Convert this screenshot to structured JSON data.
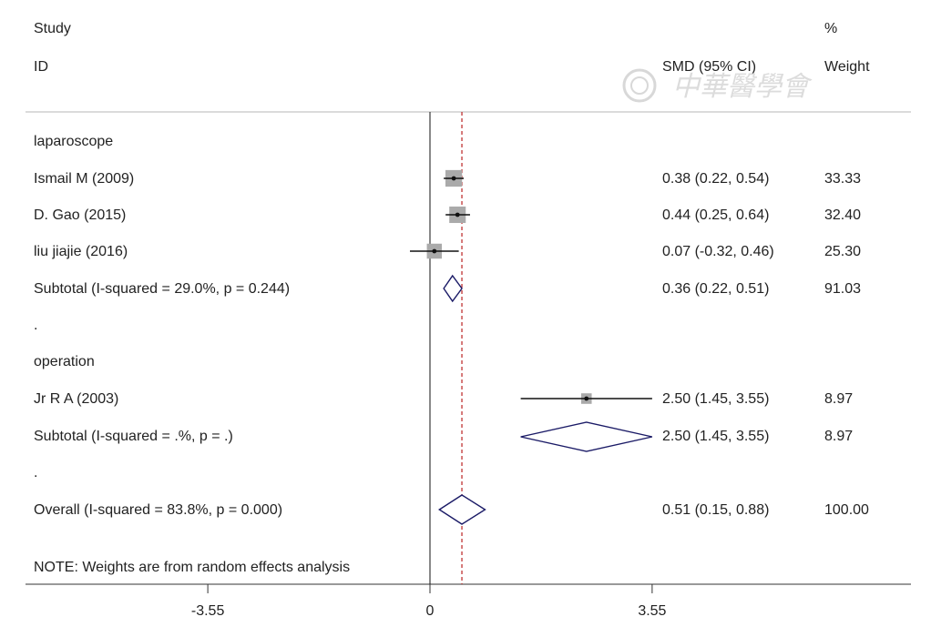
{
  "header": {
    "study_label": "Study",
    "id_label": "ID",
    "effect_label": "SMD (95% CI)",
    "percent_label": "%",
    "weight_label": "Weight"
  },
  "watermark": {
    "text": "中華醫學會"
  },
  "rows": [
    {
      "kind": "group",
      "label": "laparoscope"
    },
    {
      "kind": "study",
      "label": "Ismail M (2009)",
      "ci_text": "0.38 (0.22, 0.54)",
      "weight": "33.33"
    },
    {
      "kind": "study",
      "label": "D. Gao (2015)",
      "ci_text": "0.44 (0.25, 0.64)",
      "weight": "32.40"
    },
    {
      "kind": "study",
      "label": "liu jiajie (2016)",
      "ci_text": "0.07 (-0.32, 0.46)",
      "weight": "25.30"
    },
    {
      "kind": "subtotal",
      "label": "Subtotal  (I-squared = 29.0%, p = 0.244)",
      "ci_text": "0.36 (0.22, 0.51)",
      "weight": "91.03"
    },
    {
      "kind": "dot",
      "label": "."
    },
    {
      "kind": "group",
      "label": "operation"
    },
    {
      "kind": "study",
      "label": "Jr R A (2003)",
      "ci_text": "2.50 (1.45, 3.55)",
      "weight": "8.97"
    },
    {
      "kind": "subtotal",
      "label": "Subtotal  (I-squared = .%, p = .)",
      "ci_text": "2.50 (1.45, 3.55)",
      "weight": "8.97"
    },
    {
      "kind": "dot",
      "label": "."
    },
    {
      "kind": "overall",
      "label": "Overall  (I-squared = 83.8%, p = 0.000)",
      "ci_text": "0.51 (0.15, 0.88)",
      "weight": "100.00"
    }
  ],
  "note": "NOTE: Weights are from random effects analysis",
  "chart_data": {
    "type": "forest",
    "effect_measure": "SMD (95% CI)",
    "x_ticks": [
      {
        "value": -3.55,
        "label": "-3.55"
      },
      {
        "value": 0,
        "label": "0"
      },
      {
        "value": 3.55,
        "label": "3.55"
      }
    ],
    "null_line": 0,
    "overall_line": 0.51,
    "studies": [
      {
        "label": "Ismail M (2009)",
        "group": "laparoscope",
        "estimate": 0.38,
        "lower": 0.22,
        "upper": 0.54,
        "weight": 33.33
      },
      {
        "label": "D. Gao (2015)",
        "group": "laparoscope",
        "estimate": 0.44,
        "lower": 0.25,
        "upper": 0.64,
        "weight": 32.4
      },
      {
        "label": "liu jiajie (2016)",
        "group": "laparoscope",
        "estimate": 0.07,
        "lower": -0.32,
        "upper": 0.46,
        "weight": 25.3
      },
      {
        "label": "Jr R A (2003)",
        "group": "operation",
        "estimate": 2.5,
        "lower": 1.45,
        "upper": 3.55,
        "weight": 8.97
      }
    ],
    "subtotals": [
      {
        "group": "laparoscope",
        "estimate": 0.36,
        "lower": 0.22,
        "upper": 0.51,
        "weight": 91.03,
        "i_squared": "29.0%",
        "p": "0.244"
      },
      {
        "group": "operation",
        "estimate": 2.5,
        "lower": 1.45,
        "upper": 3.55,
        "weight": 8.97,
        "i_squared": ".%",
        "p": "."
      }
    ],
    "overall": {
      "estimate": 0.51,
      "lower": 0.15,
      "upper": 0.88,
      "weight": 100.0,
      "i_squared": "83.8%",
      "p": "0.000"
    }
  }
}
